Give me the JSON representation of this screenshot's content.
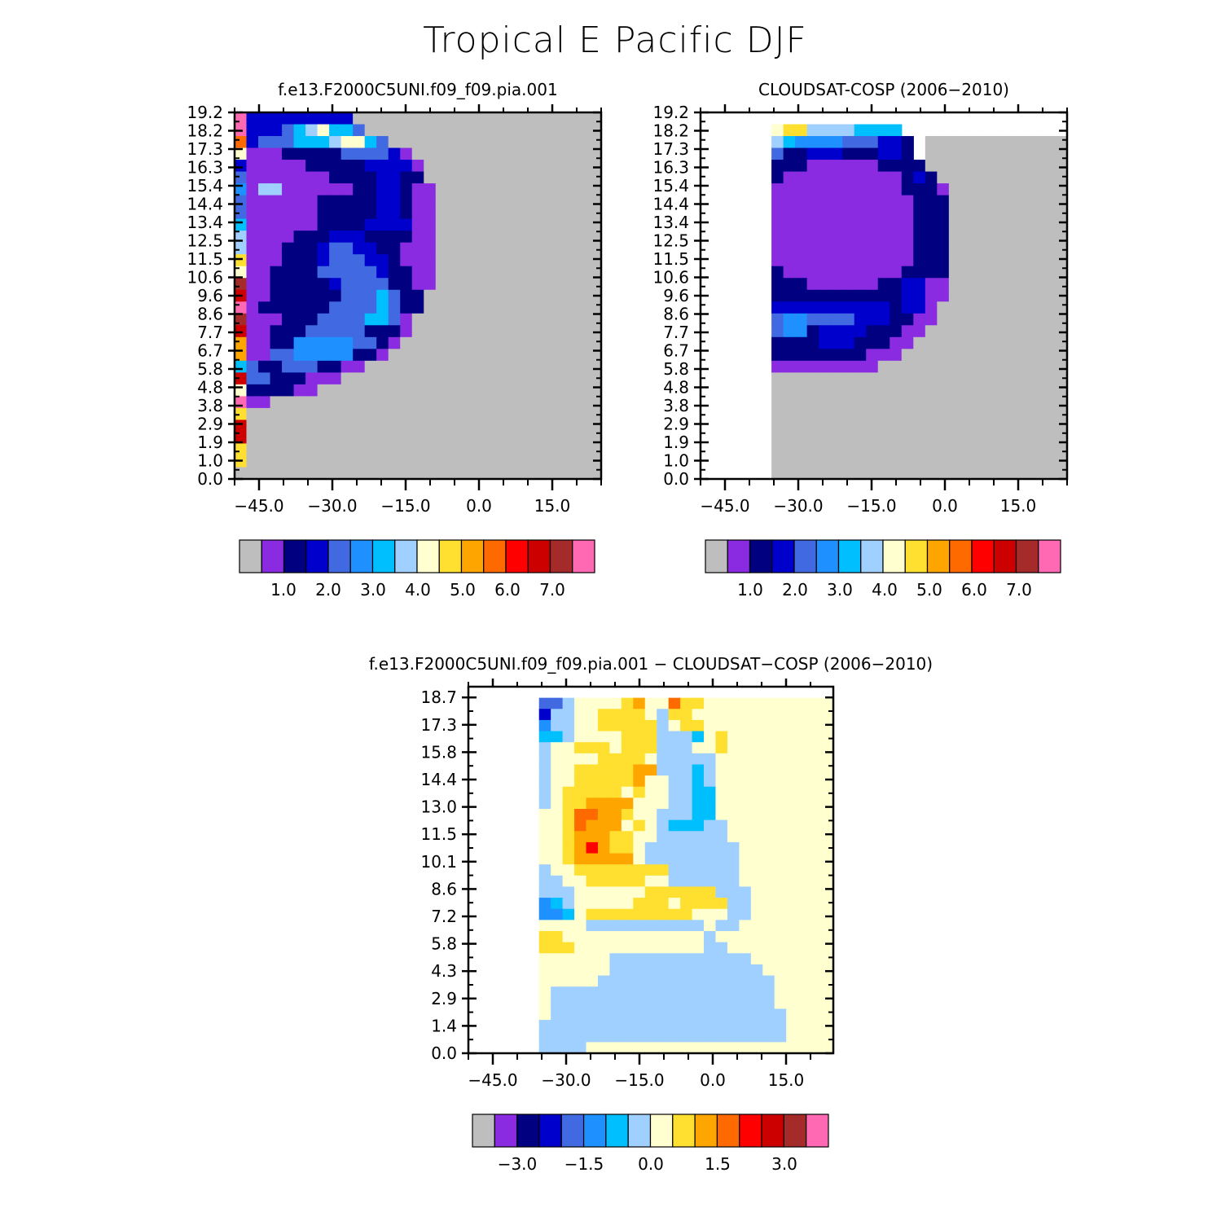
{
  "page_title": "Tropical E Pacific DJF",
  "chart_data": [
    {
      "type": "heatmap",
      "title": "f.e13.F2000C5UNI.f09_f09.pia.001",
      "x_tick_labels": [
        "−45.0",
        "−30.0",
        "−15.0",
        "0.0",
        "15.0"
      ],
      "y_tick_labels": [
        "0.0",
        "1.0",
        "1.9",
        "2.9",
        "3.8",
        "4.8",
        "5.8",
        "6.7",
        "7.7",
        "8.6",
        "9.6",
        "10.6",
        "11.5",
        "12.5",
        "13.4",
        "14.4",
        "15.4",
        "16.3",
        "17.3",
        "18.2",
        "19.2"
      ],
      "xlim": [
        -50,
        25
      ],
      "ylim": [
        0,
        19.2
      ],
      "colorbar": {
        "colors": [
          "#bebebe",
          "#8a2be2",
          "#000080",
          "#0000cd",
          "#4169e1",
          "#1e90ff",
          "#00bfff",
          "#a0d0ff",
          "#ffffd0",
          "#ffdf2f",
          "#ffa500",
          "#ff6a00",
          "#ff0000",
          "#cd0000",
          "#a52a2a",
          "#ff69b4"
        ],
        "tick_labels": [
          "1.0",
          "2.0",
          "3.0",
          "4.0",
          "5.0",
          "6.0",
          "7.0"
        ]
      },
      "grid": {
        "palette": {
          "G": "#bebebe",
          "P": "#8a2be2",
          "N": "#000080",
          "M": "#0000cd",
          "R": "#4169e1",
          "D": "#1e90ff",
          "S": "#00bfff",
          "L": "#a0d0ff",
          "C": "#ffffd0",
          "Y": "#ffdf2f",
          "O": "#ffa500",
          "K": "#ff6a00",
          "E": "#ff0000",
          "F": "#cd0000",
          "B": "#a52a2a",
          "H": "#ff69b4"
        },
        "rows": [
          "HMMMMMMMMMGGGGGGGGGGGGGGGGGGGGG",
          "HMMMRSLCSSRGGGGGGGGGGGGGGGGGGGG",
          "KMRRRSSSLCCSRGGGGGGGGGGGGGGGGGG",
          "CPPPNNNNNRRRRMPGGGGGGGGGGGGGGGG",
          "MPPPPPNNNNNMMMMPGGGGGGGGGGGGGGG",
          "RPPPPPPPNNNNMMNNGGGGGGGGGGGGGGG",
          "DPLLPPPPPPNNMMNPPGGGGGGGGGGGGGG",
          "RPPPPPPNNNNNMMNPPGGGGGGGGGGGGGG",
          "RPPPPPPNNNNNMMNPPGGGGGGGGGGGGGG",
          "SPPPPPPNNNNMMMMPPGGGGGGGGGGGGGG",
          "LPPPPNNNMMMNNNNPPGGGGGGGGGGGGGG",
          "LPPPNNNMRRMMNNPPPGGGGGGGGGGGGGG",
          "YPPPNNNMRRRMMNPPPGGGGGGGGGGGGGG",
          "CPPNNNNRRRRRMNNPPGGGGGGGGGGGGGG",
          "BPPNNNNNMRRRRNNPPGGGGGGGGGGGGGG",
          "FPPNNNNNNRRRSRNNGGGGGGGGGGGGGGG",
          "HPNNNNNNRRRRSRNNGGGGGGGGGGGGGGG",
          "BPPPNNNRRRRSSRPGGGGGGGGGGGGGGGG",
          "FPPNNNRRRRRNNNPGGGGGGGGGGGGGGGG",
          "OPPNNDDDDDRRNPGGGGGGGGGGGGGGGGG",
          "OPPRRDDDDDNNPGGGGGGGGGGGGGGGGGG",
          "SRNNRRRNNPPGGGGGGGGGGGGGGGGGGGG",
          "FRRNNNPPPGGGGGGGGGGGGGGGGGGGGGG",
          "CNNNNPPGGGGGGGGGGGGGGGGGGGGGGGG",
          "HPPGGGGGGGGGGGGGGGGGGGGGGGGGGGG",
          "YGGGGGGGGGGGGGGGGGGGGGGGGGGGGGG",
          "FGGGGGGGGGGGGGGGGGGGGGGGGGGGGGG",
          "FGGGGGGGGGGGGGGGGGGGGGGGGGGGGGG",
          "YGGGGGGGGGGGGGGGGGGGGGGGGGGGGGG",
          "YGGGGGGGGGGGGGGGGGGGGGGGGGGGGGG",
          "GGGGGGGGGGGGGGGGGGGGGGGGGGGGGGG"
        ]
      }
    },
    {
      "type": "heatmap",
      "title": "CLOUDSAT-COSP (2006−2010)",
      "x_tick_labels": [
        "−45.0",
        "−30.0",
        "−15.0",
        "0.0",
        "15.0"
      ],
      "y_tick_labels": [
        "0.0",
        "1.0",
        "1.9",
        "2.9",
        "3.8",
        "4.8",
        "5.8",
        "6.7",
        "7.7",
        "8.6",
        "9.6",
        "10.6",
        "11.5",
        "12.5",
        "13.4",
        "14.4",
        "15.4",
        "16.3",
        "17.3",
        "18.2",
        "19.2"
      ],
      "xlim": [
        -50,
        25
      ],
      "ylim": [
        0,
        19.2
      ],
      "colorbar": {
        "colors": [
          "#bebebe",
          "#8a2be2",
          "#000080",
          "#0000cd",
          "#4169e1",
          "#1e90ff",
          "#00bfff",
          "#a0d0ff",
          "#ffffd0",
          "#ffdf2f",
          "#ffa500",
          "#ff6a00",
          "#ff0000",
          "#cd0000",
          "#a52a2a",
          "#ff69b4"
        ],
        "tick_labels": [
          "1.0",
          "2.0",
          "3.0",
          "4.0",
          "5.0",
          "6.0",
          "7.0"
        ]
      },
      "grid": {
        "palette": {
          "G": "#bebebe",
          "P": "#8a2be2",
          "N": "#000080",
          "M": "#0000cd",
          "R": "#4169e1",
          "D": "#1e90ff",
          "S": "#00bfff",
          "L": "#a0d0ff",
          "C": "#ffffd0",
          "Y": "#ffdf2f",
          "O": "#ffa500",
          "W": "#ffffff"
        },
        "rows": [
          "WWWWWWWWWWWWWWWWWWWWWWWWWWWWWWW",
          "WWWWWWCYYLLLLSSSSWWWWWWWWWWWWWW",
          "WWWWWWLSDDDDRRRMMNWGGGGGGGGGGGG",
          "WWWWWWRNNMMMNNNMMNWGGGGGGGGGGGG",
          "WWWWWWNNNPPPPPPNNNNGGGGGGGGGGGG",
          "WWWWWWNPPPPPPPPPPNMNGGGGGGGGGGG",
          "WWWWWWPPPPPPPPPPPNNNPGGGGGGGGGG",
          "WWWWWWPPPPPPPPPPPPNNNGGGGGGGGGG",
          "WWWWWWPPPPPPPPPPPPNNNGGGGGGGGGG",
          "WWWWWWPPPPPPPPPPPPNNNGGGGGGGGGG",
          "WWWWWWPPPPPPPPPPPPNNNGGGGGGGGGG",
          "WWWWWWPPPPPPPPPPPPNNNGGGGGGGGGG",
          "WWWWWWPPPPPPPPPPPPNNNGGGGGGGGGG",
          "WWWWWWNPPPPPPPPPPNNNNGGGGGGGGGG",
          "WWWWWWNNNPPPPPPNNMMPPGGGGGGGGGG",
          "WWWWWWNNNNNNNNNNNMMPPGGGGGGGGGG",
          "WWWWWWMMMMMMMMMMNMMPGGGGGGGGGGG",
          "WWWWWWRDDRRRRMMMNNPPGGGGGGGGGGG",
          "WWWWWWRDDNMMMMNNNPPGGGGGGGGGGGG",
          "WWWWWWNNNNMMMNNNPPGGGGGGGGGGGGG",
          "WWWWWWNNNNNNNNPPPGGGGGGGGGGGGGG",
          "WWWWWWPPPPPPPPPGGGGGGGGGGGGGGGG",
          "WWWWWWGGGGGGGGGGGGGGGGGGGGGGGGG",
          "WWWWWWGGGGGGGGGGGGGGGGGGGGGGGGG",
          "WWWWWWGGGGGGGGGGGGGGGGGGGGGGGGG",
          "WWWWWWGGGGGGGGGGGGGGGGGGGGGGGGG",
          "WWWWWWGGGGGGGGGGGGGGGGGGGGGGGGG",
          "WWWWWWGGGGGGGGGGGGGGGGGGGGGGGGG",
          "WWWWWWGGGGGGGGGGGGGGGGGGGGGGGGG",
          "WWWWWWGGGGGGGGGGGGGGGGGGGGGGGGG",
          "WWWWWWGGGGGGGGGGGGGGGGGGGGGGGGG"
        ]
      }
    },
    {
      "type": "heatmap",
      "title": "f.e13.F2000C5UNI.f09_f09.pia.001 − CLOUDSAT−COSP (2006−2010)",
      "x_tick_labels": [
        "−45.0",
        "−30.0",
        "−15.0",
        "0.0",
        "15.0"
      ],
      "y_tick_labels": [
        "0.0",
        "1.4",
        "2.9",
        "4.3",
        "5.8",
        "7.2",
        "8.6",
        "10.1",
        "11.5",
        "13.0",
        "14.4",
        "15.8",
        "17.3",
        "18.7"
      ],
      "xlim": [
        -50,
        25
      ],
      "ylim": [
        0,
        19.2
      ],
      "colorbar": {
        "colors": [
          "#bebebe",
          "#8a2be2",
          "#000080",
          "#0000cd",
          "#4169e1",
          "#1e90ff",
          "#00bfff",
          "#a0d0ff",
          "#ffffd0",
          "#ffdf2f",
          "#ffa500",
          "#ff6a00",
          "#ff0000",
          "#cd0000",
          "#a52a2a",
          "#ff69b4"
        ],
        "tick_labels": [
          "−3.0",
          "−1.5",
          "0.0",
          "1.5",
          "3.0"
        ]
      },
      "grid": {
        "palette": {
          "W": "#ffffff",
          "C": "#ffffd0",
          "L": "#a0d0ff",
          "S": "#00bfff",
          "D": "#1e90ff",
          "R": "#4169e1",
          "M": "#0000cd",
          "Y": "#ffdf2f",
          "O": "#ffa500",
          "K": "#ff6a00",
          "E": "#ff0000"
        },
        "rows": [
          "WWWWWWWWWWWWWWWWWWWWWWWWWWWWWWW",
          "WWWWWWRRLCCCCYOCCKYYCCCCCCCCCCC",
          "WWWWWWMLLCCYYYYCLYYCCCCCCCCCCCC",
          "WWWWWWDLLCCYYYYYLCYYCCCCCCCCCCC",
          "WWWWWWSSLCCCCYYYLLLSCYCCCCCCCCC",
          "WWWWWWLCCYYYCYYYLLLCCYCCCCCCCCC",
          "WWWWWWLCCCCYYYYCLLLLLCCCCCCCCCC",
          "WWWWWWLCCYYYYYOOLLLSLCCCCCCCCCC",
          "WWWWWWLCCYYYYYOCCLLSLCCCCCCCCCC",
          "WWWWWWLCYYYYYCYCCLLSSCCCCCCCCCC",
          "WWWWWWLCYYOOOOCCCLLSSCCCCCCCCCC",
          "WWWWWWCCYKKOOYCCLLLSSCCCCCCCCCC",
          "WWWWWWCCYKOOOCYCLSSSLLCCCCCCCCC",
          "WWWWWWCCYOOOYYCCLLLLLLCCCCCCCCC",
          "WWWWWWCCYOEOYYCLLLLLLLLCCCCCCCC",
          "WWWWWWCCYOOOOOCLLLLLLLLCCCCCCCC",
          "WWWWWWLCCYYYYYYYYLLLLLLCCCCCCCC",
          "WWWWWWLLCCYYYYYCCLLLLLLCCCCCCCC",
          "WWWWWWLLLCCCCCCYYYYYYLLLCCCCCCC",
          "WWWWWWDSLCCCCCYYYCYYYYLLCCCCCCC",
          "WWWWWWDDSCYYYYYYYYYCCCLLCCCCCCC",
          "WWWWWWCCCCLLLLLLLLLLCLLCCCCCCCC",
          "WWWWWWYYCCCCCCCCCCCCLCCCCCCCCCC",
          "WWWWWWYYYCCCCCCCCCCCLLCCCCCCCCC",
          "WWWWWWCCCCCCLLLLLLLLLLLLCCCCCCC",
          "WWWWWWCCCCCCLLLLLLLLLLLLLCCCCCC",
          "WWWWWWCCCCCLLLLLLLLLLLLLLLCCCCC",
          "WWWWWWCLLLLLLLLLLLLLLLLLLLCCCCC",
          "WWWWWWCLLLLLLLLLLLLLLLLLLLCCCCC",
          "WWWWWWCLLLLLLLLLLLLLLLLLLLLCCCC",
          "WWWWWWLLLLLLLLLLLLLLLLLLLLLCCCC",
          "WWWWWWLLLLLLLLLLLLLLLLLLLLLCCCC",
          "WWWWWWLLLLCCCCCCCCCCCCCCCCCCCCC"
        ]
      }
    }
  ]
}
